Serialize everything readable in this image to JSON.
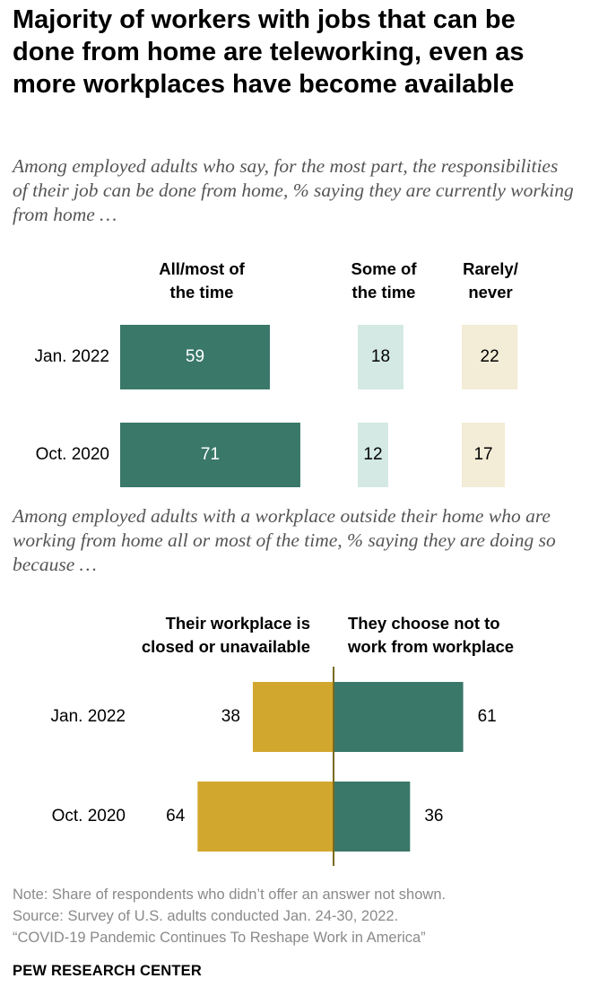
{
  "title": "Majority of workers with jobs that can be done from home are teleworking, even as more workplaces have become available",
  "chart_data": [
    {
      "type": "bar",
      "subtitle": "Among employed adults who say, for the most part, the responsibilities of their job can be done from home, % saying they are currently working from home …",
      "columns": [
        {
          "label_line1": "All/most of",
          "label_line2": "the time",
          "color": "#3a7869",
          "max": 100
        },
        {
          "label_line1": "Some of",
          "label_line2": "the time",
          "color": "#d4e9e4",
          "max": 100
        },
        {
          "label_line1": "Rarely/",
          "label_line2": "never",
          "color": "#f3ecd6",
          "max": 100
        }
      ],
      "categories": [
        "Jan. 2022",
        "Oct. 2020"
      ],
      "series": [
        {
          "name": "All/most of the time",
          "values": [
            59,
            71
          ]
        },
        {
          "name": "Some of the time",
          "values": [
            18,
            12
          ]
        },
        {
          "name": "Rarely/never",
          "values": [
            22,
            17
          ]
        }
      ]
    },
    {
      "type": "bar",
      "subtitle": "Among employed adults with a workplace outside their home who are working from home all or most of the time, % saying they are doing so because …",
      "left_label_line1": "Their workplace is",
      "left_label_line2": "closed or unavailable",
      "right_label_line1": "They choose not to",
      "right_label_line2": "work from workplace",
      "categories": [
        "Jan. 2022",
        "Oct. 2020"
      ],
      "series": [
        {
          "name": "Their workplace is closed or unavailable",
          "values": [
            38,
            64
          ],
          "color": "#d2a72e"
        },
        {
          "name": "They choose not to work from workplace",
          "values": [
            61,
            36
          ],
          "color": "#3a7869"
        }
      ],
      "axis_color": "#7a6a1e"
    }
  ],
  "notes": {
    "note": "Note: Share of respondents who didn’t offer an answer not shown.",
    "source": "Source: Survey of U.S. adults conducted Jan. 24-30, 2022.",
    "report": "“COVID-19 Pandemic Continues To Reshape Work in America”"
  },
  "brand": "PEW RESEARCH CENTER"
}
